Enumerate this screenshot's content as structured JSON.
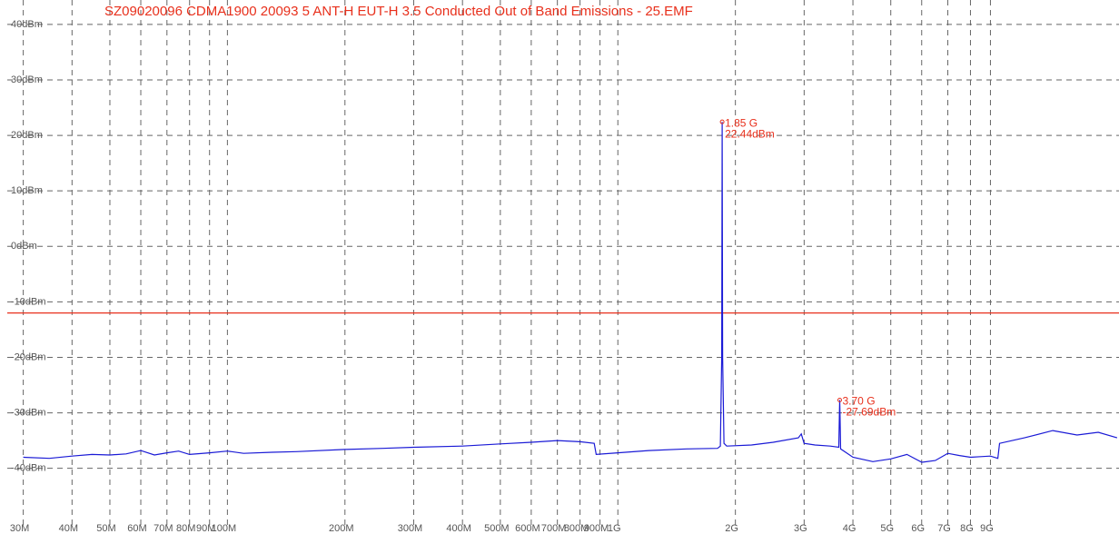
{
  "chart_data": {
    "type": "line",
    "title": "SZ09020096 CDMA1900 20093 5 ANT-H EUT-H 3.5 Conducted Out of Band Emissions - 25.EMF",
    "log_x": true,
    "grid": true,
    "xlim": [
      27.3,
      19210
    ],
    "xticks": [
      {
        "value": 30,
        "label": "30M"
      },
      {
        "value": 40,
        "label": "40M"
      },
      {
        "value": 50,
        "label": "50M"
      },
      {
        "value": 60,
        "label": "60M"
      },
      {
        "value": 70,
        "label": "70M"
      },
      {
        "value": 80,
        "label": "80M"
      },
      {
        "value": 90,
        "label": "90M"
      },
      {
        "value": 100,
        "label": "100M"
      },
      {
        "value": 200,
        "label": "200M"
      },
      {
        "value": 300,
        "label": "300M"
      },
      {
        "value": 400,
        "label": "400M"
      },
      {
        "value": 500,
        "label": "500M"
      },
      {
        "value": 600,
        "label": "600M"
      },
      {
        "value": 700,
        "label": "700M"
      },
      {
        "value": 800,
        "label": "800M"
      },
      {
        "value": 900,
        "label": "900M"
      },
      {
        "value": 1000,
        "label": "1G"
      },
      {
        "value": 2000,
        "label": "2G"
      },
      {
        "value": 3000,
        "label": "3G"
      },
      {
        "value": 4000,
        "label": "4G"
      },
      {
        "value": 5000,
        "label": "5G"
      },
      {
        "value": 6000,
        "label": "6G"
      },
      {
        "value": 7000,
        "label": "7G"
      },
      {
        "value": 8000,
        "label": "8G"
      },
      {
        "value": 9000,
        "label": "9G"
      }
    ],
    "ylim": [
      -50.2,
      44.4
    ],
    "yticks": [
      {
        "value": 40,
        "label": "40dBm"
      },
      {
        "value": 30,
        "label": "30dBm"
      },
      {
        "value": 20,
        "label": "20dBm"
      },
      {
        "value": 10,
        "label": "10dBm"
      },
      {
        "value": 0,
        "label": "0dBm"
      },
      {
        "value": -10,
        "label": "-10dBm"
      },
      {
        "value": -20,
        "label": "-20dBm"
      },
      {
        "value": -30,
        "label": "-30dBm"
      },
      {
        "value": -40,
        "label": "-40dBm"
      }
    ],
    "limit_line": {
      "value": -12,
      "color": "#e8301c"
    },
    "x": [
      30,
      35,
      40,
      45,
      50,
      55,
      60,
      65,
      70,
      75,
      80,
      90,
      100,
      110,
      130,
      150,
      200,
      250,
      300,
      400,
      500,
      600,
      700,
      800,
      870,
      880,
      1000,
      1200,
      1500,
      1800,
      1830,
      1845,
      1850,
      1855,
      1870,
      1900,
      2200,
      2500,
      2900,
      2950,
      3000,
      3200,
      3500,
      3680,
      3695,
      3700,
      3705,
      3720,
      4000,
      4500,
      5000,
      5500,
      6000,
      6500,
      7000,
      7500,
      8000,
      8500,
      9000,
      9400,
      9500,
      11000,
      13000,
      15000,
      17000,
      19000
    ],
    "series": [
      {
        "color": "#1a1ad6",
        "values": [
          -38,
          -38.2,
          -37.8,
          -37.5,
          -37.6,
          -37.4,
          -36.8,
          -37.6,
          -37.2,
          -36.9,
          -37.5,
          -37.2,
          -36.9,
          -37.3,
          -37.1,
          -37,
          -36.6,
          -36.4,
          -36.2,
          -36,
          -35.6,
          -35.3,
          -35,
          -35.2,
          -35.5,
          -37.5,
          -37.2,
          -36.8,
          -36.5,
          -36.4,
          -36,
          -20,
          22.44,
          -20,
          -35.5,
          -36,
          -35.8,
          -35.3,
          -34.5,
          -33.8,
          -35.5,
          -35.8,
          -36,
          -36.2,
          -30,
          -27.69,
          -30,
          -36.5,
          -38,
          -38.8,
          -38.3,
          -37.5,
          -38.9,
          -38.6,
          -37.3,
          -37.7,
          -38,
          -37.9,
          -37.8,
          -38.2,
          -35.5,
          -34.5,
          -33.2,
          -34,
          -33.5,
          -34.5
        ]
      }
    ],
    "markers": [
      {
        "x": 1850,
        "y": 22.44,
        "labels": [
          "1.85 G",
          "22.44dBm"
        ]
      },
      {
        "x": 3700,
        "y": -27.69,
        "labels": [
          "3.70 G",
          "-27.69dBm"
        ]
      }
    ],
    "marker_color": "#e8301c"
  }
}
